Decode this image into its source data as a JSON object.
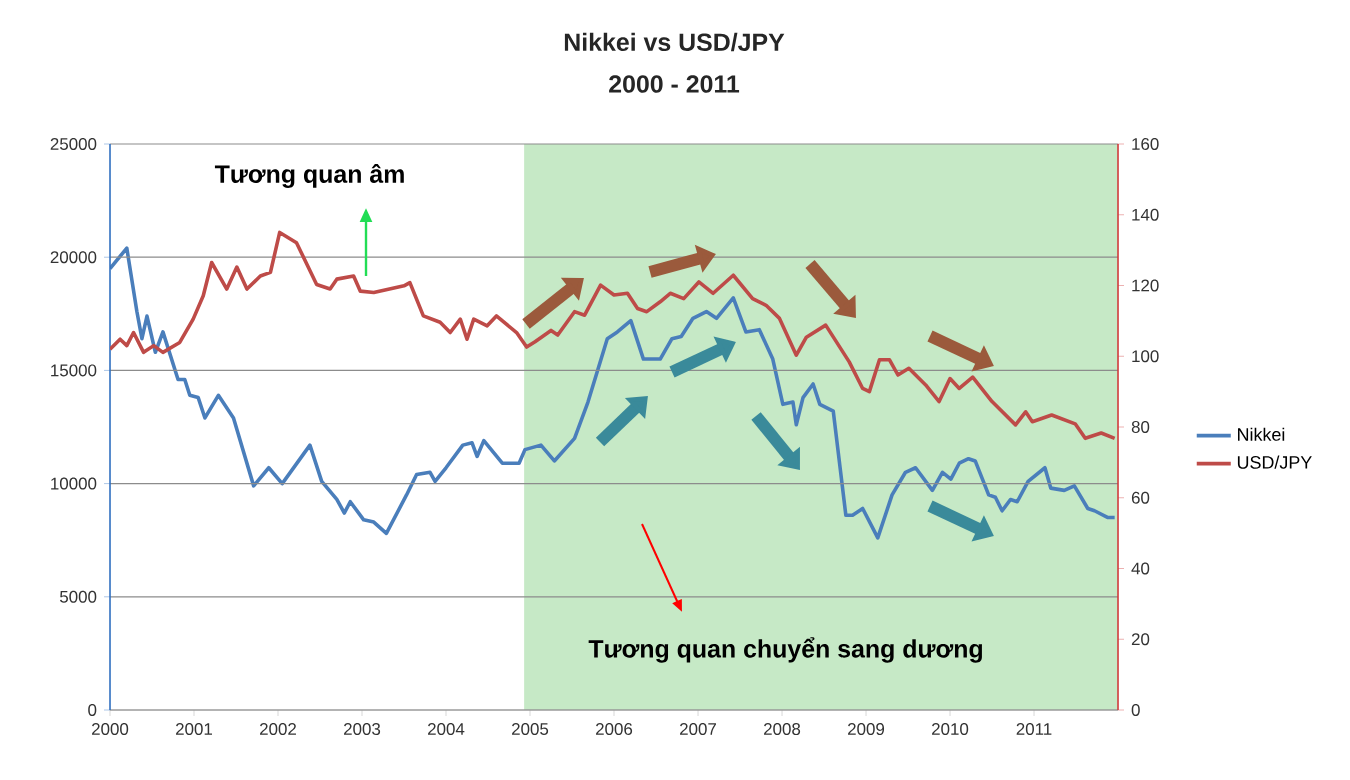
{
  "chart_data": {
    "type": "line",
    "title": "Nikkei vs USD/JPY",
    "subtitle": "2000 - 2011",
    "xlim": [
      2000,
      2012
    ],
    "xticks": [
      2000,
      2001,
      2002,
      2003,
      2004,
      2005,
      2006,
      2007,
      2008,
      2009,
      2010,
      2011
    ],
    "ylim": [
      0,
      25000
    ],
    "yticks": [
      0,
      5000,
      10000,
      15000,
      20000,
      25000
    ],
    "y2lim": [
      0,
      160
    ],
    "y2ticks": [
      0,
      20,
      40,
      60,
      80,
      100,
      120,
      140,
      160
    ],
    "grid": "y",
    "legend": "right",
    "bands": [
      {
        "axis": "x",
        "from": 2004.93,
        "to": 2012,
        "color": "#c6e9c6"
      }
    ],
    "annotations": [
      "Tương quan âm",
      "Tương quan chuyển sang dương"
    ],
    "series": [
      {
        "name": "Nikkei",
        "color": "#4a7ebb",
        "x": [
          2000.0,
          2000.2,
          2000.32,
          2000.38,
          2000.44,
          2000.54,
          2000.63,
          2000.81,
          2000.89,
          2000.95,
          2001.05,
          2001.13,
          2001.29,
          2001.47,
          2001.71,
          2001.89,
          2002.05,
          2002.38,
          2002.52,
          2002.7,
          2002.79,
          2002.86,
          2003.02,
          2003.14,
          2003.29,
          2003.53,
          2003.65,
          2003.81,
          2003.87,
          2004.0,
          2004.2,
          2004.31,
          2004.37,
          2004.45,
          2004.67,
          2004.87,
          2004.94,
          2005.13,
          2005.29,
          2005.53,
          2005.69,
          2005.92,
          2006.04,
          2006.2,
          2006.35,
          2006.55,
          2006.69,
          2006.8,
          2006.94,
          2007.1,
          2007.22,
          2007.42,
          2007.57,
          2007.73,
          2007.89,
          2008.01,
          2008.13,
          2008.17,
          2008.25,
          2008.37,
          2008.45,
          2008.61,
          2008.76,
          2008.84,
          2008.96,
          2009.14,
          2009.31,
          2009.47,
          2009.59,
          2009.79,
          2009.91,
          2010.01,
          2010.11,
          2010.22,
          2010.3,
          2010.46,
          2010.54,
          2010.62,
          2010.72,
          2010.8,
          2010.93,
          2011.13,
          2011.2,
          2011.36,
          2011.48,
          2011.64,
          2011.72,
          2011.88,
          2011.96
        ],
        "values": [
          19500,
          20400,
          17600,
          16400,
          17400,
          15800,
          16700,
          14600,
          14600,
          13900,
          13800,
          12900,
          13900,
          12900,
          9900,
          10700,
          10000,
          11700,
          10100,
          9300,
          8700,
          9200,
          8400,
          8300,
          7800,
          9500,
          10400,
          10500,
          10100,
          10700,
          11700,
          11800,
          11200,
          11900,
          10900,
          10900,
          11500,
          11700,
          11000,
          12000,
          13600,
          16400,
          16700,
          17200,
          15500,
          15500,
          16400,
          16500,
          17300,
          17600,
          17300,
          18200,
          16700,
          16800,
          15500,
          13500,
          13600,
          12600,
          13800,
          14400,
          13500,
          13200,
          8600,
          8600,
          8900,
          7600,
          9500,
          10500,
          10700,
          9700,
          10500,
          10200,
          10900,
          11100,
          11000,
          9500,
          9400,
          8800,
          9300,
          9200,
          10100,
          10700,
          9800,
          9700,
          9900,
          8900,
          8800,
          8500,
          8500
        ]
      },
      {
        "name": "USD/JPY",
        "color": "#be4b48",
        "axis": "y2",
        "x": [
          2000.0,
          2000.12,
          2000.2,
          2000.28,
          2000.4,
          2000.52,
          2000.63,
          2000.83,
          2000.99,
          2001.11,
          2001.21,
          2001.39,
          2001.51,
          2001.63,
          2001.79,
          2001.91,
          2002.02,
          2002.22,
          2002.46,
          2002.62,
          2002.7,
          2002.9,
          2002.98,
          2003.14,
          2003.5,
          2003.57,
          2003.73,
          2003.93,
          2004.05,
          2004.17,
          2004.25,
          2004.33,
          2004.49,
          2004.6,
          2004.84,
          2004.96,
          2005.06,
          2005.25,
          2005.33,
          2005.53,
          2005.65,
          2005.84,
          2006.0,
          2006.16,
          2006.28,
          2006.39,
          2006.55,
          2006.67,
          2006.83,
          2007.01,
          2007.18,
          2007.42,
          2007.65,
          2007.81,
          2007.97,
          2008.17,
          2008.29,
          2008.52,
          2008.8,
          2008.96,
          2009.04,
          2009.16,
          2009.28,
          2009.38,
          2009.51,
          2009.71,
          2009.87,
          2010.0,
          2010.11,
          2010.27,
          2010.5,
          2010.78,
          2010.9,
          2010.98,
          2011.21,
          2011.49,
          2011.61,
          2011.8,
          2011.96
        ],
        "values": [
          102.0,
          104.8,
          103.0,
          106.7,
          101.1,
          103.0,
          101.1,
          103.9,
          110.5,
          117.1,
          126.5,
          119.0,
          125.2,
          119.0,
          122.7,
          123.7,
          135.0,
          132.1,
          120.3,
          119.0,
          121.8,
          122.7,
          118.4,
          118.0,
          119.9,
          120.8,
          111.4,
          109.6,
          106.7,
          110.5,
          104.8,
          110.5,
          108.6,
          111.4,
          106.7,
          102.6,
          104.1,
          107.3,
          106.0,
          112.6,
          111.6,
          120.1,
          117.3,
          117.8,
          113.5,
          112.6,
          115.4,
          117.8,
          116.3,
          121.0,
          117.8,
          122.9,
          116.3,
          114.4,
          110.7,
          100.3,
          105.4,
          108.8,
          98.4,
          90.9,
          90.0,
          99.0,
          99.0,
          94.7,
          96.6,
          91.9,
          87.2,
          93.7,
          90.9,
          94.1,
          87.2,
          80.6,
          84.3,
          81.5,
          83.4,
          80.9,
          76.8,
          78.3,
          76.8
        ]
      }
    ]
  }
}
